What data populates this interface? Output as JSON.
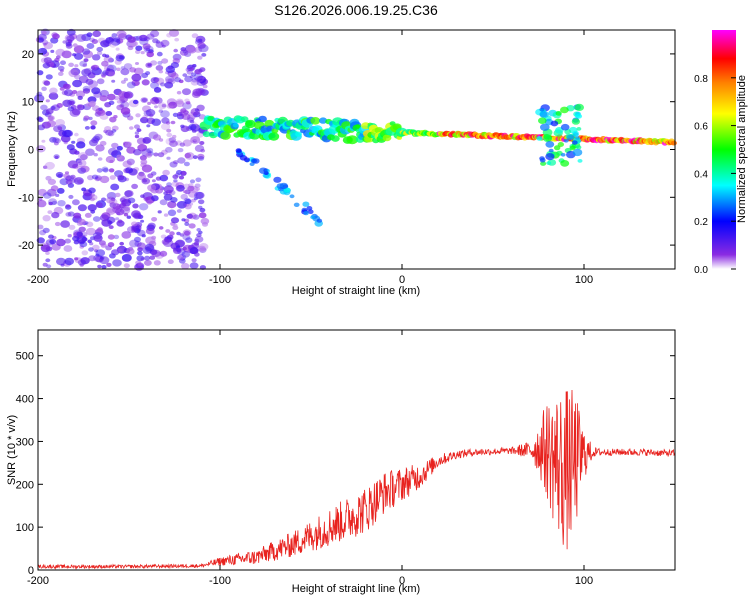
{
  "figure_title": "S126.2026.006.19.25.C36",
  "chart_data": [
    {
      "type": "heatmap",
      "title": "",
      "xlabel": "Height of straight line (km)",
      "ylabel": "Frequency (Hz)",
      "xlim": [
        -200,
        150
      ],
      "ylim": [
        -25,
        25
      ],
      "x_ticks": [
        -200,
        -100,
        0,
        100
      ],
      "y_ticks": [
        -20,
        -10,
        0,
        10,
        20
      ],
      "colorbar": {
        "label": "Normalized spectral amplitude",
        "range": [
          0,
          1
        ],
        "ticks": [
          0.0,
          0.2,
          0.4,
          0.6,
          0.8
        ],
        "tick_labels": [
          "0.0",
          "0.2",
          "0.4",
          "0.6",
          "0.8"
        ],
        "colormap": [
          "#ffffff",
          "#8a2be2",
          "#0000ff",
          "#00ffff",
          "#00ff00",
          "#ffff00",
          "#ff8000",
          "#ff0000",
          "#ff00ff"
        ]
      },
      "features": [
        {
          "name": "noise",
          "x_range": [
            -200,
            -108
          ],
          "f_range": [
            -25,
            25
          ],
          "amplitude": 0.1
        },
        {
          "name": "main-trace",
          "x_range": [
            -108,
            150
          ],
          "f_start": 5,
          "f_end": 1.5,
          "amplitude": 0.8
        },
        {
          "name": "descending-branch",
          "x_range": [
            -90,
            -45
          ],
          "f_start": 0,
          "f_end": -15,
          "amplitude": 0.3
        },
        {
          "name": "burst",
          "x_range": [
            75,
            98
          ],
          "f_range": [
            -3,
            9
          ],
          "amplitude": 0.4
        }
      ]
    },
    {
      "type": "line",
      "title": "",
      "xlabel": "Height of straight line (km)",
      "ylabel": "SNR (10 * v/v)",
      "xlim": [
        -200,
        150
      ],
      "ylim": [
        0,
        560
      ],
      "x_ticks": [
        -200,
        -100,
        0,
        100
      ],
      "y_ticks": [
        0,
        100,
        200,
        300,
        400,
        500
      ],
      "color": "#e8231f",
      "series": [
        {
          "name": "SNR",
          "x": [
            -200,
            -150,
            -110,
            -100,
            -80,
            -60,
            -40,
            -20,
            -10,
            0,
            10,
            20,
            30,
            40,
            60,
            70,
            75,
            80,
            85,
            90,
            95,
            100,
            105,
            110,
            130,
            150
          ],
          "y": [
            8,
            8,
            10,
            20,
            30,
            60,
            100,
            140,
            180,
            200,
            220,
            255,
            270,
            275,
            278,
            280,
            285,
            280,
            250,
            230,
            250,
            270,
            275,
            275,
            275,
            272
          ],
          "noise_amp": [
            4,
            4,
            4,
            10,
            18,
            30,
            45,
            55,
            50,
            40,
            30,
            15,
            10,
            8,
            8,
            20,
            60,
            120,
            170,
            200,
            170,
            60,
            12,
            8,
            8,
            8
          ]
        }
      ]
    }
  ]
}
